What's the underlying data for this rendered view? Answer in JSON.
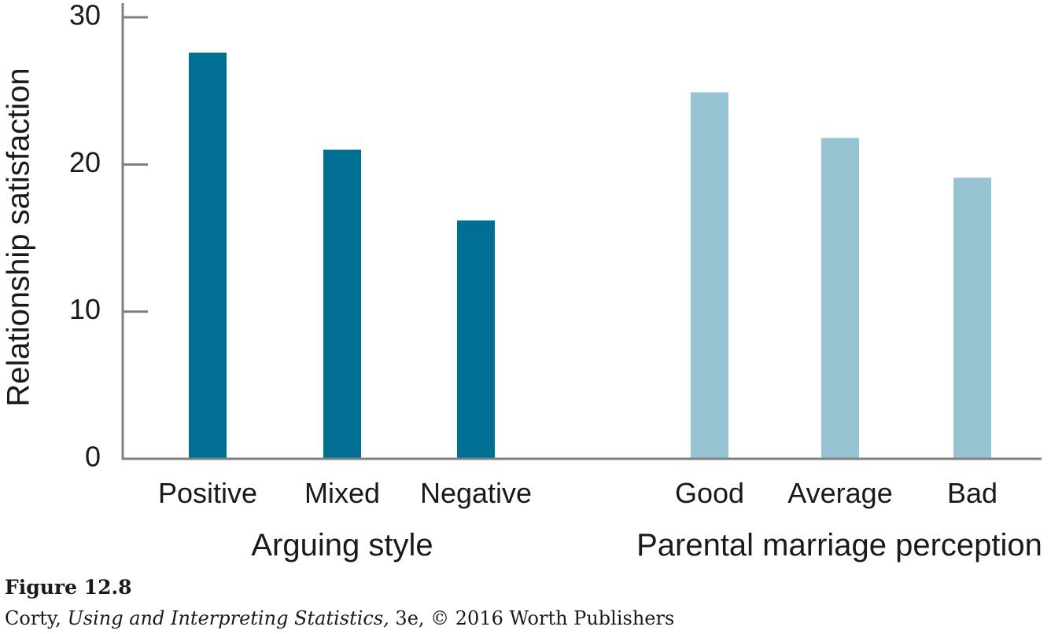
{
  "chart_data": {
    "type": "bar",
    "title": "",
    "ylabel": "Relationship satisfaction",
    "ylim": [
      0,
      30
    ],
    "yticks": [
      0,
      10,
      20,
      30
    ],
    "grid": false,
    "groups": [
      {
        "label": "Arguing style",
        "color": "#006f94",
        "categories": [
          "Positive",
          "Mixed",
          "Negative"
        ],
        "values": [
          27.6,
          21.0,
          16.2
        ]
      },
      {
        "label": "Parental marriage perception",
        "color": "#96c4d3",
        "categories": [
          "Good",
          "Average",
          "Bad"
        ],
        "values": [
          24.9,
          21.8,
          19.1
        ]
      }
    ]
  },
  "caption": {
    "figure_label": "Figure 12.8",
    "author": "Corty, ",
    "book_title": "Using and Interpreting Statistics,",
    "edition_rights": " 3e, © 2016 Worth Publishers"
  },
  "colors": {
    "axis": "#808080",
    "text": "#1a1a1a"
  }
}
